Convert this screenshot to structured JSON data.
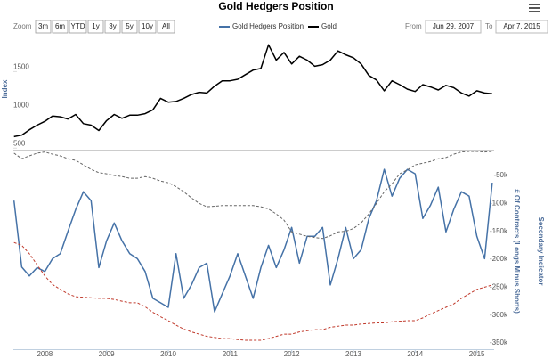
{
  "chart_data": [
    {
      "type": "line",
      "title": "Gold Hedgers Position",
      "y_label": "Index",
      "x": [
        2007.5,
        2007.625,
        2007.75,
        2007.875,
        2008,
        2008.125,
        2008.25,
        2008.375,
        2008.5,
        2008.625,
        2008.75,
        2008.875,
        2009,
        2009.125,
        2009.25,
        2009.375,
        2009.5,
        2009.625,
        2009.75,
        2009.875,
        2010,
        2010.125,
        2010.25,
        2010.375,
        2010.5,
        2010.625,
        2010.75,
        2010.875,
        2011,
        2011.125,
        2011.25,
        2011.375,
        2011.5,
        2011.625,
        2011.75,
        2011.875,
        2012,
        2012.125,
        2012.25,
        2012.375,
        2012.5,
        2012.625,
        2012.75,
        2012.875,
        2013,
        2013.125,
        2013.25,
        2013.375,
        2013.5,
        2013.625,
        2013.75,
        2013.875,
        2014,
        2014.125,
        2014.25,
        2014.375,
        2014.5,
        2014.625,
        2014.75,
        2014.875,
        2015,
        2015.125,
        2015.25
      ],
      "xlim": [
        2007.49,
        2015.28
      ],
      "ylim": [
        480,
        1970
      ],
      "yticks": [
        500,
        1000,
        1500
      ],
      "series": [
        {
          "name": "Gold",
          "color": "#000000",
          "values": [
            650,
            670,
            740,
            800,
            850,
            920,
            910,
            880,
            940,
            820,
            800,
            730,
            860,
            940,
            890,
            930,
            930,
            950,
            1000,
            1150,
            1100,
            1110,
            1150,
            1200,
            1230,
            1220,
            1310,
            1380,
            1380,
            1400,
            1460,
            1520,
            1540,
            1850,
            1650,
            1750,
            1600,
            1700,
            1650,
            1570,
            1590,
            1650,
            1770,
            1720,
            1680,
            1600,
            1450,
            1390,
            1250,
            1380,
            1330,
            1270,
            1240,
            1330,
            1300,
            1260,
            1320,
            1290,
            1220,
            1180,
            1250,
            1220,
            1210
          ]
        }
      ]
    },
    {
      "type": "line",
      "y_label": "# Of Contracts (Longs Minus Shorts)",
      "secondary_label": "Secondary Indicator",
      "x": [
        2007.5,
        2007.625,
        2007.75,
        2007.875,
        2008,
        2008.125,
        2008.25,
        2008.375,
        2008.5,
        2008.625,
        2008.75,
        2008.875,
        2009,
        2009.125,
        2009.25,
        2009.375,
        2009.5,
        2009.625,
        2009.75,
        2009.875,
        2010,
        2010.125,
        2010.25,
        2010.375,
        2010.5,
        2010.625,
        2010.75,
        2010.875,
        2011,
        2011.125,
        2011.25,
        2011.375,
        2011.5,
        2011.625,
        2011.75,
        2011.875,
        2012,
        2012.125,
        2012.25,
        2012.375,
        2012.5,
        2012.625,
        2012.75,
        2012.875,
        2013,
        2013.125,
        2013.25,
        2013.375,
        2013.5,
        2013.625,
        2013.75,
        2013.875,
        2014,
        2014.125,
        2014.25,
        2014.375,
        2014.5,
        2014.625,
        2014.75,
        2014.875,
        2015,
        2015.125,
        2015.25
      ],
      "xlim": [
        2007.49,
        2015.28
      ],
      "xticks": [
        2008,
        2009,
        2010,
        2011,
        2012,
        2013,
        2014,
        2015
      ],
      "ylim": [
        -361000,
        -7000
      ],
      "yticks": [
        {
          "value": -50000,
          "label": "-50k"
        },
        {
          "value": -100000,
          "label": "-100k"
        },
        {
          "value": -150000,
          "label": "-150k"
        },
        {
          "value": -200000,
          "label": "-200k"
        },
        {
          "value": -250000,
          "label": "-250k"
        },
        {
          "value": -300000,
          "label": "-300k"
        },
        {
          "value": -350000,
          "label": "-350k"
        }
      ],
      "series": [
        {
          "name": "Gold Hedgers Position",
          "color": "#4572a7",
          "values": [
            -95000,
            -214000,
            -230000,
            -215000,
            -222000,
            -199000,
            -190000,
            -150000,
            -111000,
            -79000,
            -95000,
            -215000,
            -167000,
            -135000,
            -167000,
            -190000,
            -199000,
            -222000,
            -270000,
            -278000,
            -286000,
            -190000,
            -270000,
            -246000,
            -215000,
            -207000,
            -294000,
            -262000,
            -230000,
            -190000,
            -230000,
            -270000,
            -215000,
            -175000,
            -215000,
            -183000,
            -143000,
            -207000,
            -159000,
            -159000,
            -143000,
            -246000,
            -199000,
            -143000,
            -199000,
            -183000,
            -127000,
            -95000,
            -39000,
            -87000,
            -55000,
            -39000,
            -47000,
            -127000,
            -103000,
            -71000,
            -151000,
            -111000,
            -79000,
            -87000,
            -159000,
            -199000,
            -63000
          ]
        },
        {
          "color": "#666666",
          "dashed": true,
          "values": [
            -10000,
            -20000,
            -15000,
            -10000,
            -8000,
            -12000,
            -15000,
            -20000,
            -23000,
            -31000,
            -39000,
            -45000,
            -47000,
            -50000,
            -52000,
            -55000,
            -55000,
            -52000,
            -55000,
            -60000,
            -63000,
            -70000,
            -79000,
            -90000,
            -100000,
            -106000,
            -105000,
            -104000,
            -104000,
            -104000,
            -104000,
            -104000,
            -106000,
            -110000,
            -119000,
            -130000,
            -151000,
            -155000,
            -159000,
            -161000,
            -163000,
            -158000,
            -151000,
            -150000,
            -145000,
            -135000,
            -119000,
            -100000,
            -79000,
            -65000,
            -47000,
            -40000,
            -31000,
            -28000,
            -25000,
            -20000,
            -18000,
            -12000,
            -8000,
            -7000,
            -7000,
            -8000,
            -7000
          ]
        },
        {
          "color": "#c0392b",
          "dashed": true,
          "values": [
            -170000,
            -175000,
            -190000,
            -210000,
            -230000,
            -245000,
            -254000,
            -262000,
            -267000,
            -268000,
            -269000,
            -270000,
            -270000,
            -272000,
            -275000,
            -278000,
            -278000,
            -285000,
            -295000,
            -303000,
            -310000,
            -318000,
            -325000,
            -330000,
            -334000,
            -338000,
            -340000,
            -342000,
            -342000,
            -344000,
            -345000,
            -345000,
            -345000,
            -342000,
            -338000,
            -334000,
            -334000,
            -330000,
            -328000,
            -326000,
            -326000,
            -322000,
            -320000,
            -318000,
            -318000,
            -316000,
            -315000,
            -314000,
            -314000,
            -312000,
            -311000,
            -310000,
            -310000,
            -305000,
            -298000,
            -292000,
            -286000,
            -280000,
            -270000,
            -262000,
            -254000,
            -250000,
            -246000
          ]
        }
      ]
    }
  ],
  "range_selector": {
    "label": "Zoom",
    "buttons": [
      "3m",
      "6m",
      "YTD",
      "1y",
      "3y",
      "5y",
      "10y",
      "All"
    ]
  },
  "date_range": {
    "from_label": "From",
    "from": "Jun 29, 2007",
    "to_label": "To",
    "to": "Apr 7, 2015"
  }
}
